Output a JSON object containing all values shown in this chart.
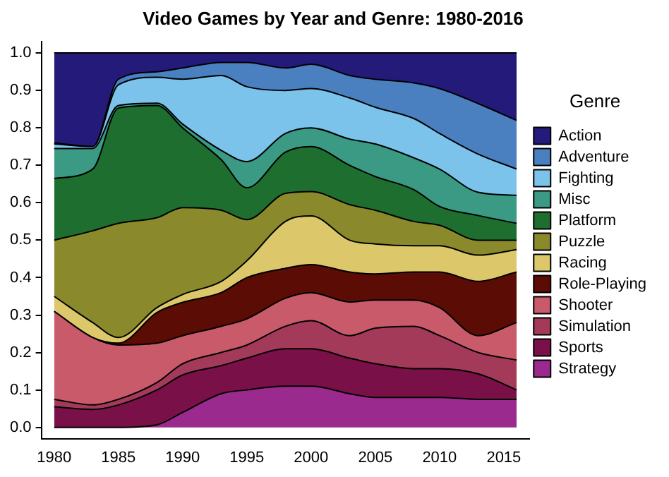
{
  "chart_data": {
    "type": "area",
    "title": "Video Games by Year and Genre: 1980-2016",
    "legend_title": "Genre",
    "legend": "right",
    "stacked": true,
    "grid": false,
    "x": [
      1980,
      1983,
      1985,
      1988,
      1990,
      1993,
      1995,
      1998,
      2000,
      2003,
      2005,
      2008,
      2010,
      2013,
      2016
    ],
    "xlim": [
      1979,
      2017
    ],
    "xticks": [
      1980,
      1985,
      1990,
      1995,
      2000,
      2005,
      2010,
      2015
    ],
    "ylim": [
      -0.03,
      1.03
    ],
    "yticks": [
      {
        "value": 0,
        "label": "0.0"
      },
      0.1,
      0.2,
      0.3,
      0.4,
      0.5,
      0.6,
      0.7,
      0.8,
      0.9,
      {
        "value": 1,
        "label": "1.0"
      }
    ],
    "series": [
      {
        "name": "Strategy",
        "color": "#9a2a8e",
        "values": [
          0,
          0,
          0,
          0.007,
          0.04,
          0.09,
          0.1,
          0.11,
          0.11,
          0.09,
          0.08,
          0.08,
          0.08,
          0.075,
          0.075
        ]
      },
      {
        "name": "Sports",
        "color": "#7a1048",
        "values": [
          0.055,
          0.048,
          0.06,
          0.093,
          0.1,
          0.075,
          0.085,
          0.1,
          0.1,
          0.095,
          0.09,
          0.077,
          0.077,
          0.068,
          0.025
        ]
      },
      {
        "name": "Simulation",
        "color": "#a33a5a",
        "values": [
          0.02,
          0.012,
          0.015,
          0.02,
          0.03,
          0.035,
          0.035,
          0.06,
          0.075,
          0.06,
          0.095,
          0.113,
          0.088,
          0.057,
          0.08
        ]
      },
      {
        "name": "Shooter",
        "color": "#c85a6a",
        "values": [
          0.235,
          0.18,
          0.145,
          0.105,
          0.075,
          0.07,
          0.07,
          0.075,
          0.075,
          0.09,
          0.075,
          0.07,
          0.075,
          0.045,
          0.1
        ]
      },
      {
        "name": "Role-Playing",
        "color": "#5a0c05",
        "values": [
          0,
          0,
          0.005,
          0.082,
          0.089,
          0.09,
          0.11,
          0.08,
          0.075,
          0.08,
          0.07,
          0.075,
          0.095,
          0.145,
          0.135
        ]
      },
      {
        "name": "Racing",
        "color": "#dcc86a",
        "values": [
          0.04,
          0.04,
          0.015,
          0.013,
          0.021,
          0.03,
          0.045,
          0.125,
          0.13,
          0.085,
          0.08,
          0.07,
          0.07,
          0.07,
          0.06
        ]
      },
      {
        "name": "Puzzle",
        "color": "#8a8a2c",
        "values": [
          0.15,
          0.245,
          0.305,
          0.24,
          0.232,
          0.19,
          0.11,
          0.075,
          0.065,
          0.095,
          0.09,
          0.065,
          0.055,
          0.04,
          0.025
        ]
      },
      {
        "name": "Platform",
        "color": "#1e6e30",
        "values": [
          0.165,
          0.165,
          0.308,
          0.3,
          0.213,
          0.135,
          0.085,
          0.11,
          0.12,
          0.105,
          0.09,
          0.085,
          0.05,
          0.066,
          0.045
        ]
      },
      {
        "name": "Misc",
        "color": "#3a9a84",
        "values": [
          0.08,
          0.055,
          0.007,
          0.006,
          0.01,
          0.025,
          0.07,
          0.05,
          0.05,
          0.07,
          0.087,
          0.085,
          0.1,
          0.062,
          0.075
        ]
      },
      {
        "name": "Fighting",
        "color": "#7cc3ec",
        "values": [
          0.012,
          0.005,
          0.055,
          0.069,
          0.12,
          0.2,
          0.2,
          0.115,
          0.105,
          0.11,
          0.098,
          0.105,
          0.095,
          0.102,
          0.07
        ]
      },
      {
        "name": "Adventure",
        "color": "#4a7fc0",
        "values": [
          0.003,
          0,
          0.015,
          0.015,
          0.03,
          0.035,
          0.065,
          0.06,
          0.065,
          0.06,
          0.075,
          0.095,
          0.12,
          0.135,
          0.13
        ]
      },
      {
        "name": "Action",
        "color": "#241a7a",
        "values": [
          0.24,
          0.25,
          0.07,
          0.05,
          0.04,
          0.025,
          0.025,
          0.04,
          0.03,
          0.06,
          0.07,
          0.08,
          0.095,
          0.135,
          0.18
        ]
      }
    ]
  }
}
